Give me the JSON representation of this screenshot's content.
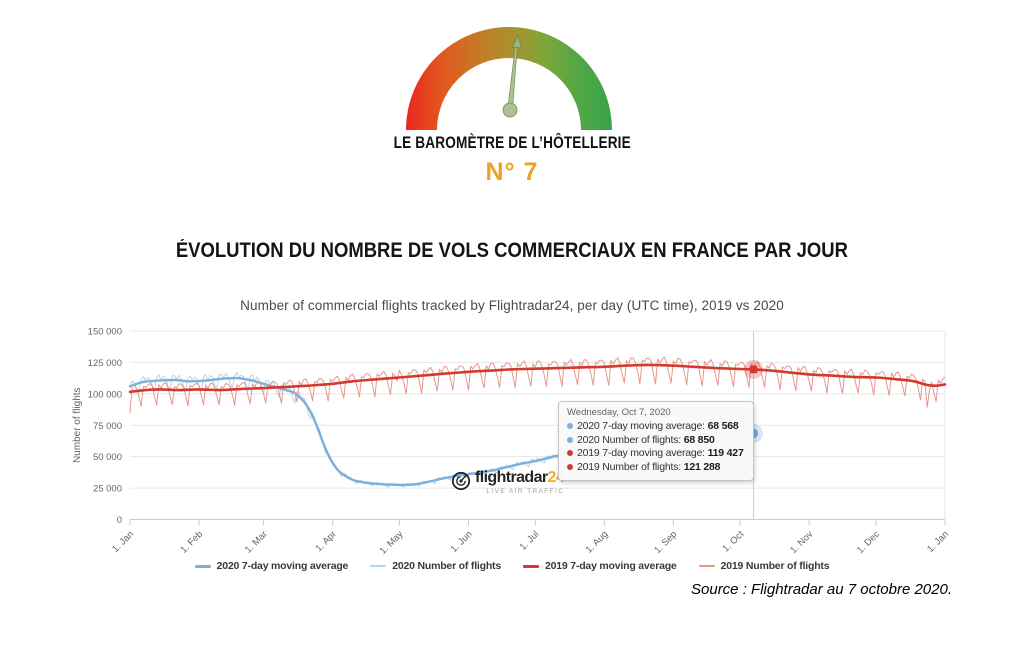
{
  "page": {
    "logo": {
      "title": "LE BAROMÈTRE DE L’HÔTELLERIE",
      "issue": "N° 7",
      "issue_color": "#eba324"
    },
    "chart_title": "ÉVOLUTION DU NOMBRE DE VOLS COMMERCIAUX EN FRANCE PAR JOUR",
    "subtitle": "Number of commercial flights tracked by Flightradar24, per day (UTC time), 2019 vs 2020",
    "source": "Source : Flightradar au 7 octobre 2020.",
    "watermark": {
      "brand": "flightradar",
      "brand_suffix": "24",
      "tagline": "LIVE AIR TRAFFIC"
    }
  },
  "chart_data": {
    "type": "line",
    "title": "Number of commercial flights tracked by Flightradar24, per day (UTC time), 2019 vs 2020",
    "xlabel": "",
    "ylabel": "Number of flights",
    "ylim": [
      0,
      150000
    ],
    "yticks": [
      0,
      25000,
      50000,
      75000,
      100000,
      125000,
      150000
    ],
    "ytick_labels": [
      "0",
      "25 000",
      "50 000",
      "75 000",
      "100 000",
      "125 000",
      "150 000"
    ],
    "xtick_days": [
      0,
      31,
      60,
      91,
      121,
      152,
      182,
      213,
      244,
      274,
      305,
      335,
      366
    ],
    "xtick_labels": [
      "1. Jan",
      "1. Feb",
      "1. Mar",
      "1. Apr",
      "1. May",
      "1. Jun",
      "1. Jul",
      "1. Aug",
      "1. Sep",
      "1. Oct",
      "1. Nov",
      "1. Dec",
      "1. Jan"
    ],
    "days_span": 366,
    "grid": "horizontal",
    "legend_position": "bottom",
    "crosshair_day": 280,
    "series": [
      {
        "name": "2020 7-day moving average",
        "color": "#7cafdd",
        "width": 2.4,
        "type": "ma",
        "end_day": 280,
        "anchors": [
          [
            0,
            106000
          ],
          [
            6,
            109500
          ],
          [
            13,
            110500
          ],
          [
            20,
            111000
          ],
          [
            27,
            110000
          ],
          [
            34,
            110500
          ],
          [
            41,
            112000
          ],
          [
            48,
            112500
          ],
          [
            55,
            110500
          ],
          [
            60,
            108000
          ],
          [
            65,
            105500
          ],
          [
            70,
            103000
          ],
          [
            74,
            100500
          ],
          [
            78,
            94000
          ],
          [
            81,
            86000
          ],
          [
            84,
            74000
          ],
          [
            87,
            60000
          ],
          [
            90,
            48000
          ],
          [
            93,
            40000
          ],
          [
            96,
            35500
          ],
          [
            100,
            31500
          ],
          [
            105,
            29500
          ],
          [
            110,
            28500
          ],
          [
            116,
            27800
          ],
          [
            122,
            27500
          ],
          [
            128,
            28000
          ],
          [
            134,
            30000
          ],
          [
            140,
            32500
          ],
          [
            146,
            34500
          ],
          [
            152,
            36000
          ],
          [
            158,
            37500
          ],
          [
            164,
            39500
          ],
          [
            170,
            42000
          ],
          [
            176,
            44500
          ],
          [
            182,
            46500
          ],
          [
            188,
            49000
          ],
          [
            194,
            51500
          ],
          [
            200,
            54000
          ],
          [
            206,
            56000
          ],
          [
            212,
            58000
          ],
          [
            218,
            60000
          ],
          [
            224,
            62000
          ],
          [
            230,
            63500
          ],
          [
            237,
            64500
          ],
          [
            244,
            65500
          ],
          [
            251,
            66000
          ],
          [
            258,
            66500
          ],
          [
            265,
            67200
          ],
          [
            272,
            68000
          ],
          [
            280,
            68568
          ]
        ]
      },
      {
        "name": "2020 Number of flights",
        "color": "#b7d3eb",
        "width": 1,
        "type": "raw",
        "end_day": 280,
        "base": 0,
        "weekly_pattern": [
          0.03,
          0.04,
          0.005,
          0.028,
          0.012,
          -0.038,
          -0.07
        ],
        "pattern_phase": 2,
        "events": {}
      },
      {
        "name": "2019 7-day moving average",
        "color": "#d13a2d",
        "width": 2.6,
        "type": "ma",
        "end_day": 366,
        "anchors": [
          [
            0,
            101500
          ],
          [
            7,
            103000
          ],
          [
            14,
            103500
          ],
          [
            21,
            103000
          ],
          [
            31,
            103500
          ],
          [
            41,
            103000
          ],
          [
            51,
            104000
          ],
          [
            59,
            104500
          ],
          [
            70,
            105500
          ],
          [
            80,
            106500
          ],
          [
            91,
            108000
          ],
          [
            100,
            110000
          ],
          [
            110,
            111500
          ],
          [
            121,
            113000
          ],
          [
            131,
            114500
          ],
          [
            141,
            116000
          ],
          [
            152,
            117500
          ],
          [
            162,
            118500
          ],
          [
            172,
            119500
          ],
          [
            182,
            120000
          ],
          [
            192,
            120500
          ],
          [
            202,
            121000
          ],
          [
            213,
            121500
          ],
          [
            223,
            122500
          ],
          [
            233,
            123000
          ],
          [
            243,
            122500
          ],
          [
            253,
            121500
          ],
          [
            263,
            120500
          ],
          [
            274,
            119800
          ],
          [
            280,
            119427
          ],
          [
            288,
            118500
          ],
          [
            296,
            117000
          ],
          [
            305,
            115500
          ],
          [
            315,
            114500
          ],
          [
            325,
            113500
          ],
          [
            335,
            113000
          ],
          [
            345,
            111500
          ],
          [
            352,
            110000
          ],
          [
            358,
            107000
          ],
          [
            362,
            106500
          ],
          [
            366,
            107500
          ]
        ]
      },
      {
        "name": "2019 Number of flights",
        "color": "#e9958c",
        "width": 1,
        "type": "raw",
        "end_day": 366,
        "base": 2,
        "weekly_pattern": [
          0.035,
          0.015,
          0.04,
          0.045,
          0.02,
          -0.045,
          -0.115
        ],
        "pattern_phase": 1,
        "events": {
          "0": -18000,
          "120": -8000,
          "358": -22000,
          "359": -9000
        }
      }
    ],
    "markers": [
      {
        "day": 280,
        "value": 119427,
        "shape": "square",
        "color": "#d13a2d"
      },
      {
        "day": 280,
        "value": 68568,
        "shape": "circle",
        "color": "#6ea6d8"
      }
    ],
    "tooltip": {
      "header": "Wednesday, Oct 7, 2020",
      "rows": [
        {
          "bullet_color": "#7cafdd",
          "label": "2020 7-day moving average:",
          "value": "68 568"
        },
        {
          "bullet_color": "#7cafdd",
          "label": "2020 Number of flights:",
          "value": "68 850"
        },
        {
          "bullet_color": "#d13a2d",
          "label": "2019 7-day moving average:",
          "value": "119 427"
        },
        {
          "bullet_color": "#d13a2d",
          "label": "2019 Number of flights:",
          "value": "121 288"
        }
      ]
    }
  }
}
